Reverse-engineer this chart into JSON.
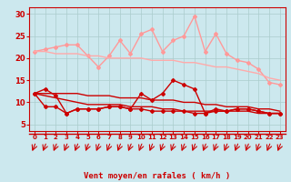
{
  "xlabel": "Vent moyen/en rafales ( km/h )",
  "bg_color": "#cce8ee",
  "grid_color": "#aacccc",
  "x": [
    0,
    1,
    2,
    3,
    4,
    5,
    6,
    7,
    8,
    9,
    10,
    11,
    12,
    13,
    14,
    15,
    16,
    17,
    18,
    19,
    20,
    21,
    22,
    23
  ],
  "series": [
    {
      "color": "#ff9999",
      "linewidth": 1.0,
      "marker": "D",
      "markersize": 2.0,
      "y": [
        21.5,
        22.0,
        22.5,
        23.0,
        23.0,
        20.5,
        18.0,
        20.5,
        24.0,
        21.0,
        25.5,
        26.5,
        21.5,
        24.0,
        25.0,
        29.5,
        21.5,
        25.5,
        21.0,
        19.5,
        19.0,
        17.5,
        14.5,
        14.0
      ]
    },
    {
      "color": "#ffaaaa",
      "linewidth": 1.0,
      "marker": null,
      "markersize": 0,
      "y": [
        21.5,
        21.5,
        21.0,
        21.0,
        21.0,
        20.5,
        20.5,
        20.0,
        20.0,
        20.0,
        20.0,
        19.5,
        19.5,
        19.5,
        19.0,
        19.0,
        18.5,
        18.0,
        18.0,
        17.5,
        17.0,
        16.5,
        15.5,
        15.0
      ]
    },
    {
      "color": "#cc0000",
      "linewidth": 1.0,
      "marker": "D",
      "markersize": 2.0,
      "y": [
        12.0,
        13.0,
        11.5,
        7.5,
        8.5,
        8.5,
        8.5,
        9.0,
        9.0,
        8.5,
        12.0,
        10.5,
        12.0,
        15.0,
        14.0,
        13.0,
        7.5,
        8.0,
        8.0,
        8.5,
        8.5,
        8.0,
        7.5,
        7.5
      ]
    },
    {
      "color": "#cc0000",
      "linewidth": 1.0,
      "marker": null,
      "markersize": 0,
      "y": [
        12.0,
        12.0,
        12.0,
        12.0,
        12.0,
        11.5,
        11.5,
        11.5,
        11.0,
        11.0,
        11.0,
        10.5,
        10.5,
        10.5,
        10.0,
        10.0,
        9.5,
        9.5,
        9.0,
        9.0,
        9.0,
        8.5,
        8.5,
        8.0
      ]
    },
    {
      "color": "#cc0000",
      "linewidth": 1.0,
      "marker": "D",
      "markersize": 2.0,
      "y": [
        12.0,
        9.0,
        9.0,
        7.5,
        8.5,
        8.5,
        8.5,
        9.0,
        9.0,
        8.5,
        8.5,
        8.0,
        8.0,
        8.0,
        8.0,
        7.5,
        7.5,
        8.5,
        8.0,
        8.5,
        8.5,
        8.0,
        7.5,
        7.5
      ]
    },
    {
      "color": "#cc0000",
      "linewidth": 1.0,
      "marker": null,
      "markersize": 0,
      "y": [
        12.0,
        11.5,
        11.0,
        10.5,
        10.0,
        9.5,
        9.5,
        9.5,
        9.5,
        9.0,
        9.0,
        9.0,
        8.5,
        8.5,
        8.0,
        8.0,
        8.0,
        8.0,
        8.0,
        8.0,
        8.0,
        7.5,
        7.5,
        7.5
      ]
    }
  ],
  "ylim": [
    3.5,
    31.5
  ],
  "xlim": [
    -0.5,
    23.5
  ],
  "yticks": [
    5,
    10,
    15,
    20,
    25,
    30
  ],
  "xticks": [
    0,
    1,
    2,
    3,
    4,
    5,
    6,
    7,
    8,
    9,
    10,
    11,
    12,
    13,
    14,
    15,
    16,
    17,
    18,
    19,
    20,
    21,
    22,
    23
  ]
}
